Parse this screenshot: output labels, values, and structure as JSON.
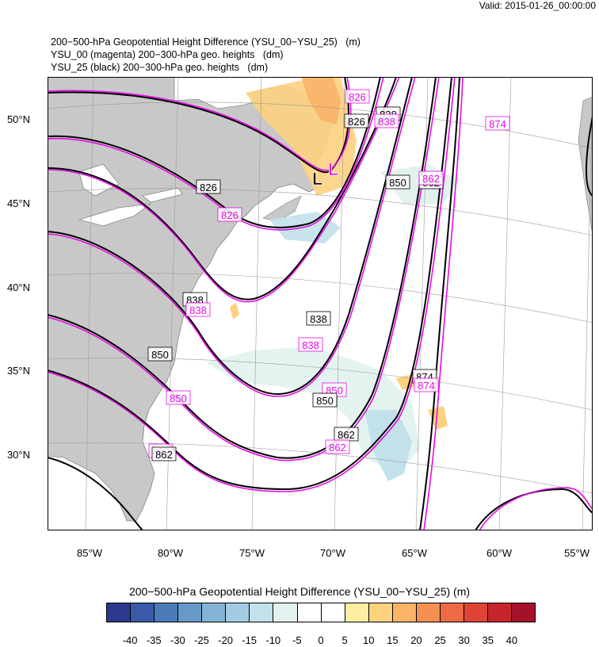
{
  "valid_label": "Valid: 2015-01-26_00:00:00",
  "titles": [
    "200−500-hPa Geopotential Height Difference (YSU_00−YSU_25)   (m)",
    "YSU_00 (magenta) 200−300-hPa geo. heights   (dm)",
    "YSU_25 (black) 200−300-hPa geo. heights   (dm)"
  ],
  "colorbar": {
    "title": "200−500-hPa Geopotential Height Difference (YSU_00−YSU_25)  (m)",
    "labels": [
      "-40",
      "-35",
      "-30",
      "-25",
      "-20",
      "-15",
      "-10",
      "-5",
      "0",
      "5",
      "10",
      "15",
      "20",
      "25",
      "30",
      "35",
      "40"
    ],
    "colors": [
      "#2b3a8f",
      "#3a5aa8",
      "#4b7ab9",
      "#6799c8",
      "#84b3d6",
      "#a3cce3",
      "#c2e1ea",
      "#e2f2ef",
      "#ffffff",
      "#ffffff",
      "#fdeea3",
      "#fcd27f",
      "#fab368",
      "#f59052",
      "#ec6a44",
      "#de4436",
      "#c8252b",
      "#a5102a"
    ]
  },
  "map": {
    "lat_labels": [
      "50°N",
      "45°N",
      "40°N",
      "35°N",
      "30°N"
    ],
    "lon_labels": [
      "85°W",
      "80°W",
      "75°W",
      "70°W",
      "65°W",
      "60°W",
      "55°W"
    ],
    "low_symbol": "L",
    "contour_labels": [
      {
        "text": "826",
        "color": "magenta"
      },
      {
        "text": "838",
        "color": "black"
      },
      {
        "text": "826",
        "color": "black"
      },
      {
        "text": "838",
        "color": "magenta"
      },
      {
        "text": "874",
        "color": "magenta"
      },
      {
        "text": "850",
        "color": "black"
      },
      {
        "text": "862",
        "color": "black"
      },
      {
        "text": "862",
        "color": "magenta"
      },
      {
        "text": "826",
        "color": "black"
      },
      {
        "text": "826",
        "color": "magenta"
      },
      {
        "text": "838",
        "color": "black"
      },
      {
        "text": "838",
        "color": "magenta"
      },
      {
        "text": "838",
        "color": "black"
      },
      {
        "text": "838",
        "color": "magenta"
      },
      {
        "text": "850",
        "color": "black"
      },
      {
        "text": "850",
        "color": "magenta"
      },
      {
        "text": "850",
        "color": "magenta"
      },
      {
        "text": "850",
        "color": "black"
      },
      {
        "text": "874",
        "color": "black"
      },
      {
        "text": "874",
        "color": "magenta"
      },
      {
        "text": "862",
        "color": "black"
      },
      {
        "text": "862",
        "color": "magenta"
      },
      {
        "text": "862",
        "color": "magenta"
      },
      {
        "text": "862",
        "color": "black"
      }
    ]
  }
}
